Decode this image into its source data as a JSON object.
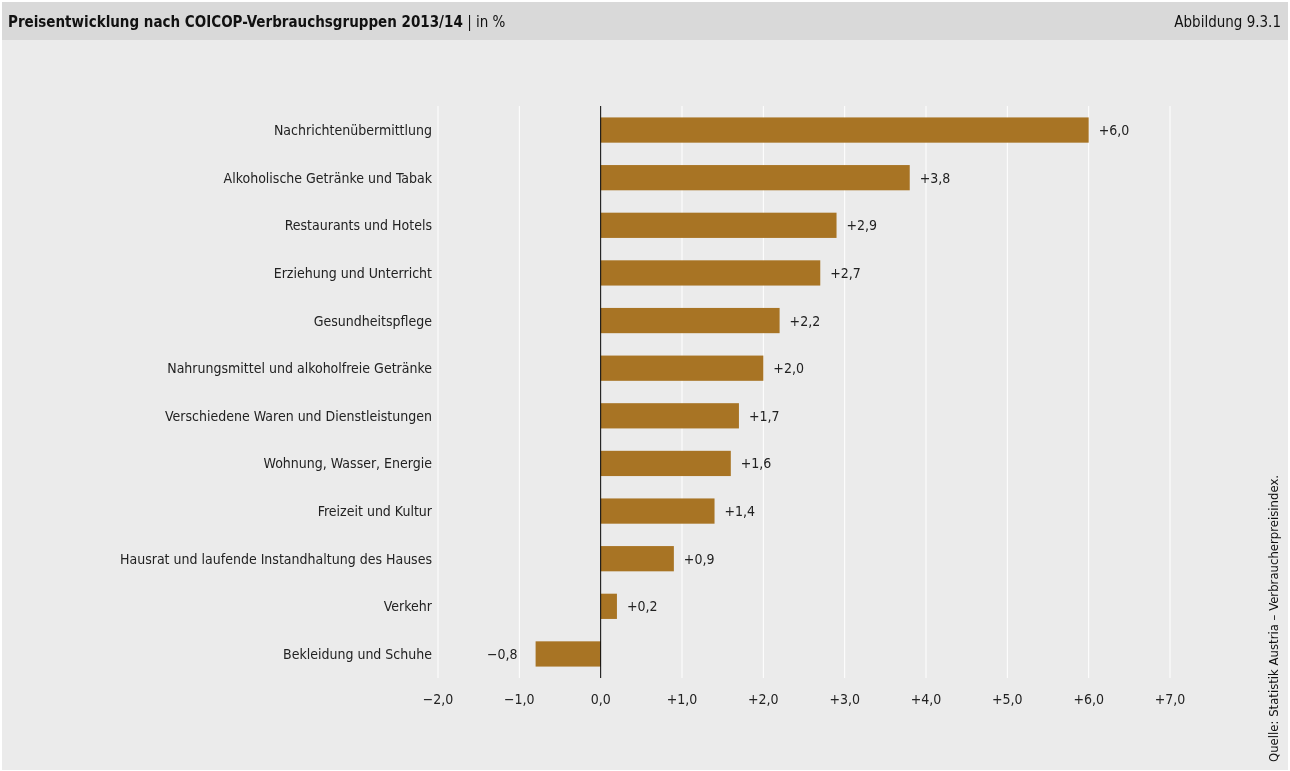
{
  "chart_data": {
    "type": "bar",
    "orientation": "horizontal",
    "title": "Preisentwicklung nach COICOP-Verbrauchsgruppen 2013/14",
    "subtitle": "| in %",
    "categories": [
      "Nachrichtenübermittlung",
      "Alkoholische Getränke und Tabak",
      "Restaurants und Hotels",
      "Erziehung und Unterricht",
      "Gesundheitspflege",
      "Nahrungsmittel und alkoholfreie Getränke",
      "Verschiedene Waren und Dienstleistungen",
      "Wohnung, Wasser, Energie",
      "Freizeit und Kultur",
      "Hausrat und laufende Instandhaltung des Hauses",
      "Verkehr",
      "Bekleidung und Schuhe"
    ],
    "values": [
      6.0,
      3.8,
      2.9,
      2.7,
      2.2,
      2.0,
      1.7,
      1.6,
      1.4,
      0.9,
      0.2,
      -0.8
    ],
    "value_labels": [
      "+6,0",
      "+3,8",
      "+2,9",
      "+2,7",
      "+2,2",
      "+2,0",
      "+1,7",
      "+1,6",
      "+1,4",
      "+0,9",
      "+0,2",
      "−0,8"
    ],
    "color": "#a87424",
    "xlim": [
      -2,
      7
    ],
    "xticks": [
      {
        "value": -2,
        "label": "−2,0"
      },
      {
        "value": -1,
        "label": "−1,0"
      },
      {
        "value": 0,
        "label": "0,0"
      },
      {
        "value": 1,
        "label": "+1,0"
      },
      {
        "value": 2,
        "label": "+2,0"
      },
      {
        "value": 3,
        "label": "+3,0"
      },
      {
        "value": 4,
        "label": "+4,0"
      },
      {
        "value": 5,
        "label": "+5,0"
      },
      {
        "value": 6,
        "label": "+6,0"
      },
      {
        "value": 7,
        "label": "+7,0"
      }
    ],
    "grid": "x",
    "annotations": [
      "Abbildung 9.3.1",
      "Quelle: Statistik Austria – Verbraucherpreisindex."
    ]
  }
}
